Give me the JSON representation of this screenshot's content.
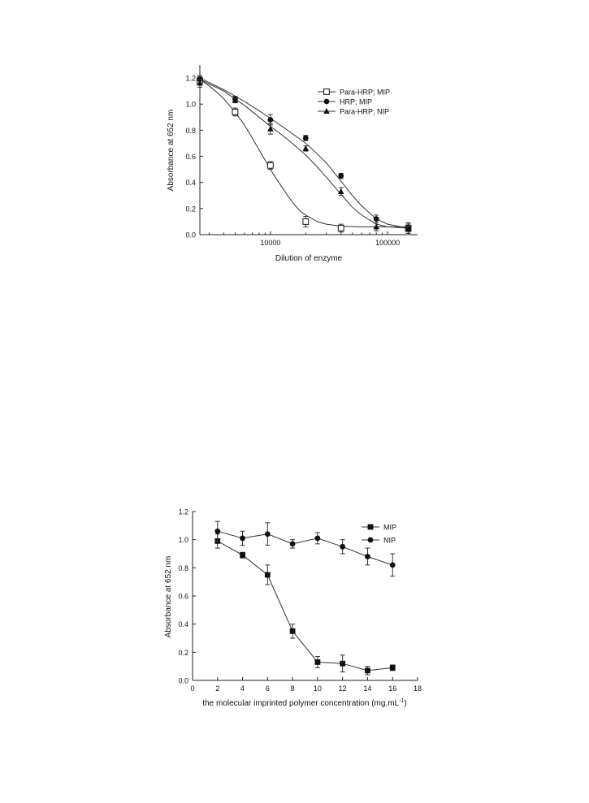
{
  "chart_data": [
    {
      "type": "scatter",
      "xscale": "log",
      "xlabel": "Dilution of enzyme",
      "ylabel": "Absorbance at 652 nm",
      "xlim": [
        2500,
        180000
      ],
      "ylim": [
        0,
        1.3
      ],
      "xticks": [
        10000,
        100000
      ],
      "xtick_labels": [
        "10000",
        "100000"
      ],
      "yticks": [
        0.0,
        0.2,
        0.4,
        0.6,
        0.8,
        1.0,
        1.2
      ],
      "ytick_labels": [
        "0.0",
        "0.2",
        "0.4",
        "0.6",
        "0.8",
        "1.0",
        "1.2"
      ],
      "legend_position": "top-right",
      "series": [
        {
          "name": "Para-HRP; MIP",
          "marker": "open-square",
          "x": [
            2500,
            5000,
            10000,
            20000,
            40000,
            150000
          ],
          "y": [
            1.18,
            0.94,
            0.53,
            0.1,
            0.05,
            0.05
          ],
          "err": [
            0.03,
            0.03,
            0.03,
            0.04,
            0.03,
            0.04
          ],
          "fit_x": [
            2500,
            3000,
            3500,
            4000,
            5000,
            6000,
            7000,
            8000,
            9000,
            10000,
            11000,
            12000,
            14000,
            16000,
            18000,
            20000,
            25000,
            30000,
            40000,
            60000,
            100000,
            150000
          ],
          "fit_y": [
            1.19,
            1.14,
            1.09,
            1.04,
            0.94,
            0.84,
            0.74,
            0.65,
            0.57,
            0.5,
            0.44,
            0.39,
            0.3,
            0.23,
            0.18,
            0.15,
            0.1,
            0.08,
            0.065,
            0.06,
            0.06,
            0.06
          ]
        },
        {
          "name": "HRP; MIP",
          "marker": "filled-circle",
          "x": [
            2500,
            5000,
            10000,
            20000,
            40000,
            80000,
            150000
          ],
          "y": [
            1.19,
            1.04,
            0.88,
            0.74,
            0.45,
            0.12,
            0.05
          ],
          "err": [
            0.03,
            0.02,
            0.04,
            0.02,
            0.02,
            0.03,
            0.04
          ],
          "fit_x": [
            2500,
            4000,
            6000,
            8000,
            10000,
            14000,
            20000,
            25000,
            30000,
            40000,
            50000,
            60000,
            80000,
            100000,
            150000
          ],
          "fit_y": [
            1.2,
            1.11,
            1.02,
            0.95,
            0.89,
            0.8,
            0.7,
            0.62,
            0.55,
            0.41,
            0.3,
            0.22,
            0.12,
            0.08,
            0.05
          ]
        },
        {
          "name": "Para-HRP; NIP",
          "marker": "filled-triangle",
          "x": [
            2500,
            5000,
            10000,
            20000,
            40000,
            80000,
            150000
          ],
          "y": [
            1.16,
            1.03,
            0.81,
            0.66,
            0.33,
            0.06,
            0.04
          ],
          "err": [
            0.03,
            0.02,
            0.04,
            0.02,
            0.03,
            0.03,
            0.04
          ],
          "fit_x": [
            2500,
            4000,
            6000,
            8000,
            10000,
            14000,
            20000,
            25000,
            30000,
            40000,
            50000,
            60000,
            80000,
            100000,
            150000
          ],
          "fit_y": [
            1.19,
            1.1,
            0.99,
            0.9,
            0.83,
            0.73,
            0.61,
            0.52,
            0.44,
            0.31,
            0.21,
            0.15,
            0.08,
            0.06,
            0.05
          ]
        }
      ]
    },
    {
      "type": "line",
      "xlabel": "the molecular imprinted polymer concentration (mg.mL",
      "xlabel_sup": "-1",
      "xlabel_end": ")",
      "ylabel": "Absorbance at 652 nm",
      "xlim": [
        0,
        18
      ],
      "ylim": [
        0,
        1.2
      ],
      "xticks": [
        0,
        2,
        4,
        6,
        8,
        10,
        12,
        14,
        16,
        18
      ],
      "xtick_labels": [
        "0",
        "2",
        "4",
        "6",
        "8",
        "10",
        "12",
        "14",
        "16",
        "18"
      ],
      "yticks": [
        0.0,
        0.2,
        0.4,
        0.6,
        0.8,
        1.0,
        1.2
      ],
      "ytick_labels": [
        "0.0",
        "0.2",
        "0.4",
        "0.6",
        "0.8",
        "1.0",
        "1.2"
      ],
      "legend_position": "top-right",
      "series": [
        {
          "name": "MIP",
          "marker": "filled-square",
          "x": [
            2,
            4,
            6,
            8,
            10,
            12,
            14,
            16
          ],
          "y": [
            0.99,
            0.89,
            0.75,
            0.35,
            0.13,
            0.12,
            0.07,
            0.09
          ],
          "err": [
            0.05,
            0.02,
            0.07,
            0.05,
            0.04,
            0.06,
            0.03,
            0.02
          ]
        },
        {
          "name": "NIP",
          "marker": "filled-circle",
          "x": [
            2,
            4,
            6,
            8,
            10,
            12,
            14,
            16
          ],
          "y": [
            1.06,
            1.01,
            1.04,
            0.97,
            1.01,
            0.95,
            0.88,
            0.82
          ],
          "err": [
            0.07,
            0.05,
            0.08,
            0.03,
            0.04,
            0.05,
            0.06,
            0.08
          ]
        }
      ]
    }
  ]
}
